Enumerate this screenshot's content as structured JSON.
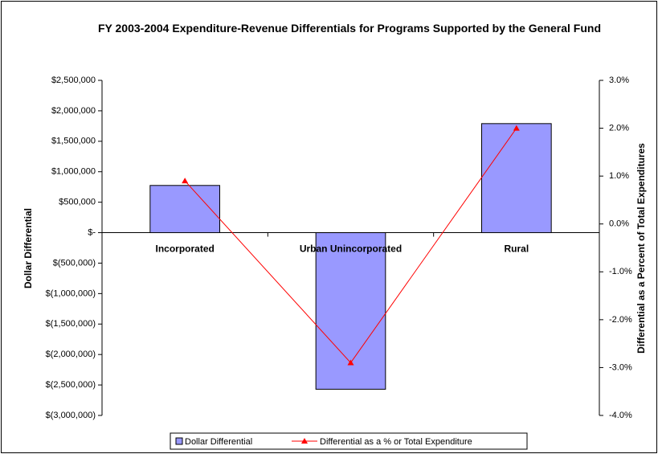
{
  "chart_data": {
    "type": "bar",
    "title": "FY 2003-2004 Expenditure-Revenue Differentials for Programs Supported by the General Fund",
    "y_label": "Dollar Differential",
    "y2_label": "Differential as a Percent of Total Expenditures",
    "categories": [
      "Incorporated",
      "Urban Unincorporated",
      "Rural"
    ],
    "series": [
      {
        "name": "Dollar Differential",
        "type": "bar",
        "color": "#9999ff",
        "values": [
          775000,
          -2570000,
          1790000
        ]
      },
      {
        "name": "Differential as a % or Total Expenditure",
        "type": "line",
        "axis": "y2",
        "color": "#ff0000",
        "values": [
          0.9,
          -2.9,
          2.0
        ]
      }
    ],
    "ylim": [
      -3000000,
      2500000
    ],
    "yticks": [
      {
        "value": 2500000,
        "label": "$2,500,000"
      },
      {
        "value": 2000000,
        "label": "$2,000,000"
      },
      {
        "value": 1500000,
        "label": "$1,500,000"
      },
      {
        "value": 1000000,
        "label": "$1,000,000"
      },
      {
        "value": 500000,
        "label": "$500,000"
      },
      {
        "value": 0,
        "label": "$-"
      },
      {
        "value": -500000,
        "label": "$(500,000)"
      },
      {
        "value": -1000000,
        "label": "$(1,000,000)"
      },
      {
        "value": -1500000,
        "label": "$(1,500,000)"
      },
      {
        "value": -2000000,
        "label": "$(2,000,000)"
      },
      {
        "value": -2500000,
        "label": "$(2,500,000)"
      },
      {
        "value": -3000000,
        "label": "$(3,000,000)"
      }
    ],
    "y2lim": [
      -4,
      3
    ],
    "y2ticks": [
      {
        "value": 3,
        "label": "3.0%"
      },
      {
        "value": 2,
        "label": "2.0%"
      },
      {
        "value": 1,
        "label": "1.0%"
      },
      {
        "value": 0,
        "label": "0.0%"
      },
      {
        "value": -1,
        "label": "-1.0%"
      },
      {
        "value": -2,
        "label": "-2.0%"
      },
      {
        "value": -3,
        "label": "-3.0%"
      },
      {
        "value": -4,
        "label": "-4.0%"
      }
    ],
    "grid": false,
    "legend": "bottom"
  }
}
